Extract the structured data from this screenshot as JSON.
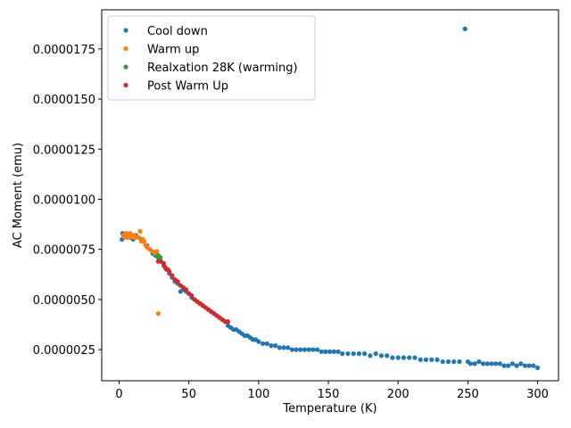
{
  "chart_data": {
    "type": "scatter",
    "title": "",
    "xlabel": "Temperature (K)",
    "ylabel": "AC Moment (emu)",
    "xlim": [
      -12.5,
      315
    ],
    "ylim": [
      9.5e-07,
      1.945e-05
    ],
    "xticks": [
      0,
      50,
      100,
      150,
      200,
      250,
      300
    ],
    "yticks": [
      2.5e-06,
      5e-06,
      7.5e-06,
      1e-05,
      1.25e-05,
      1.5e-05,
      1.75e-05
    ],
    "ytick_labels": [
      "0.0000025",
      "0.0000050",
      "0.0000075",
      "0.0000100",
      "0.0000125",
      "0.0000150",
      "0.0000175"
    ],
    "grid": false,
    "legend_position": "top-left",
    "series": [
      {
        "name": "Cool down",
        "color": "#1f77b4",
        "points": [
          [
            2,
            8e-06
          ],
          [
            2.5,
            8.3e-06
          ],
          [
            4,
            8.2e-06
          ],
          [
            6,
            8.1e-06
          ],
          [
            8,
            8.1e-06
          ],
          [
            10,
            8e-06
          ],
          [
            12,
            8.2e-06
          ],
          [
            14,
            8.1e-06
          ],
          [
            16,
            8e-06
          ],
          [
            18,
            7.9e-06
          ],
          [
            20,
            7.7e-06
          ],
          [
            22,
            7.5e-06
          ],
          [
            24,
            7.3e-06
          ],
          [
            26,
            7.2e-06
          ],
          [
            28,
            7.1e-06
          ],
          [
            30,
            6.9e-06
          ],
          [
            32,
            6.7e-06
          ],
          [
            34,
            6.5e-06
          ],
          [
            36,
            6.3e-06
          ],
          [
            38,
            6.1e-06
          ],
          [
            40,
            5.9e-06
          ],
          [
            42,
            5.8e-06
          ],
          [
            44,
            5.4e-06
          ],
          [
            46,
            5.5e-06
          ],
          [
            48,
            5.4e-06
          ],
          [
            50,
            5.3e-06
          ],
          [
            52,
            5.1e-06
          ],
          [
            54,
            5e-06
          ],
          [
            56,
            4.9e-06
          ],
          [
            58,
            4.8e-06
          ],
          [
            60,
            4.7e-06
          ],
          [
            62,
            4.6e-06
          ],
          [
            64,
            4.5e-06
          ],
          [
            66,
            4.4e-06
          ],
          [
            68,
            4.3e-06
          ],
          [
            70,
            4.2e-06
          ],
          [
            72,
            4.1e-06
          ],
          [
            74,
            4e-06
          ],
          [
            76,
            3.9e-06
          ],
          [
            78,
            3.7e-06
          ],
          [
            80,
            3.6e-06
          ],
          [
            82,
            3.5e-06
          ],
          [
            84,
            3.5e-06
          ],
          [
            86,
            3.4e-06
          ],
          [
            88,
            3.3e-06
          ],
          [
            90,
            3.2e-06
          ],
          [
            92,
            3.2e-06
          ],
          [
            94,
            3.1e-06
          ],
          [
            96,
            3e-06
          ],
          [
            98,
            3e-06
          ],
          [
            100,
            2.9e-06
          ],
          [
            103,
            2.8e-06
          ],
          [
            106,
            2.8e-06
          ],
          [
            109,
            2.7e-06
          ],
          [
            112,
            2.7e-06
          ],
          [
            115,
            2.6e-06
          ],
          [
            118,
            2.6e-06
          ],
          [
            121,
            2.6e-06
          ],
          [
            124,
            2.5e-06
          ],
          [
            127,
            2.5e-06
          ],
          [
            130,
            2.5e-06
          ],
          [
            133,
            2.5e-06
          ],
          [
            136,
            2.5e-06
          ],
          [
            139,
            2.5e-06
          ],
          [
            142,
            2.5e-06
          ],
          [
            145,
            2.4e-06
          ],
          [
            148,
            2.4e-06
          ],
          [
            151,
            2.4e-06
          ],
          [
            154,
            2.4e-06
          ],
          [
            157,
            2.4e-06
          ],
          [
            160,
            2.3e-06
          ],
          [
            164,
            2.3e-06
          ],
          [
            168,
            2.3e-06
          ],
          [
            172,
            2.3e-06
          ],
          [
            176,
            2.3e-06
          ],
          [
            180,
            2.2e-06
          ],
          [
            184,
            2.3e-06
          ],
          [
            188,
            2.2e-06
          ],
          [
            192,
            2.2e-06
          ],
          [
            196,
            2.1e-06
          ],
          [
            200,
            2.1e-06
          ],
          [
            204,
            2.1e-06
          ],
          [
            208,
            2.1e-06
          ],
          [
            212,
            2.1e-06
          ],
          [
            216,
            2e-06
          ],
          [
            220,
            2e-06
          ],
          [
            224,
            2e-06
          ],
          [
            228,
            2e-06
          ],
          [
            232,
            1.9e-06
          ],
          [
            236,
            1.9e-06
          ],
          [
            240,
            1.9e-06
          ],
          [
            244,
            1.9e-06
          ],
          [
            248,
            1.85e-05
          ],
          [
            250,
            1.9e-06
          ],
          [
            252,
            1.8e-06
          ],
          [
            255,
            1.8e-06
          ],
          [
            258,
            1.9e-06
          ],
          [
            261,
            1.8e-06
          ],
          [
            264,
            1.8e-06
          ],
          [
            267,
            1.8e-06
          ],
          [
            270,
            1.8e-06
          ],
          [
            273,
            1.8e-06
          ],
          [
            276,
            1.7e-06
          ],
          [
            279,
            1.7e-06
          ],
          [
            282,
            1.8e-06
          ],
          [
            285,
            1.7e-06
          ],
          [
            288,
            1.8e-06
          ],
          [
            291,
            1.7e-06
          ],
          [
            294,
            1.7e-06
          ],
          [
            297,
            1.7e-06
          ],
          [
            300,
            1.6e-06
          ]
        ]
      },
      {
        "name": "Warm up",
        "color": "#ff7f0e",
        "points": [
          [
            3,
            8.2e-06
          ],
          [
            4,
            8.1e-06
          ],
          [
            5,
            8.3e-06
          ],
          [
            6,
            8.2e-06
          ],
          [
            7,
            8.1e-06
          ],
          [
            8,
            8.3e-06
          ],
          [
            9,
            8.2e-06
          ],
          [
            10,
            8.1e-06
          ],
          [
            11,
            8.2e-06
          ],
          [
            12,
            8.1e-06
          ],
          [
            14,
            8.1e-06
          ],
          [
            15,
            8.4e-06
          ],
          [
            16,
            7.9e-06
          ],
          [
            17,
            8e-06
          ],
          [
            18,
            7.9e-06
          ],
          [
            19,
            7.7e-06
          ],
          [
            20,
            7.6e-06
          ],
          [
            22,
            7.5e-06
          ],
          [
            24,
            7.4e-06
          ],
          [
            26,
            7.3e-06
          ],
          [
            27,
            7.4e-06
          ],
          [
            28,
            4.3e-06
          ]
        ]
      },
      {
        "name": "Realxation 28K (warming)",
        "color": "#2ca02c",
        "points": [
          [
            28,
            7.2e-06
          ],
          [
            28.5,
            7.1e-06
          ],
          [
            29,
            7e-06
          ],
          [
            29.5,
            7.1e-06
          ]
        ]
      },
      {
        "name": "Post Warm Up",
        "color": "#d62728",
        "points": [
          [
            28,
            6.9e-06
          ],
          [
            30,
            6.9e-06
          ],
          [
            32,
            6.8e-06
          ],
          [
            33,
            6.6e-06
          ],
          [
            34,
            6.5e-06
          ],
          [
            35,
            6.5e-06
          ],
          [
            36,
            6.4e-06
          ],
          [
            38,
            6.2e-06
          ],
          [
            40,
            6e-06
          ],
          [
            42,
            5.9e-06
          ],
          [
            44,
            5.7e-06
          ],
          [
            46,
            5.6e-06
          ],
          [
            48,
            5.5e-06
          ],
          [
            50,
            5.3e-06
          ],
          [
            52,
            5.2e-06
          ],
          [
            54,
            5e-06
          ],
          [
            56,
            4.9e-06
          ],
          [
            58,
            4.8e-06
          ],
          [
            60,
            4.7e-06
          ],
          [
            62,
            4.6e-06
          ],
          [
            64,
            4.5e-06
          ],
          [
            66,
            4.4e-06
          ],
          [
            68,
            4.3e-06
          ],
          [
            70,
            4.2e-06
          ],
          [
            72,
            4.1e-06
          ],
          [
            74,
            4e-06
          ],
          [
            76,
            3.9e-06
          ],
          [
            78,
            3.9e-06
          ]
        ]
      }
    ]
  }
}
